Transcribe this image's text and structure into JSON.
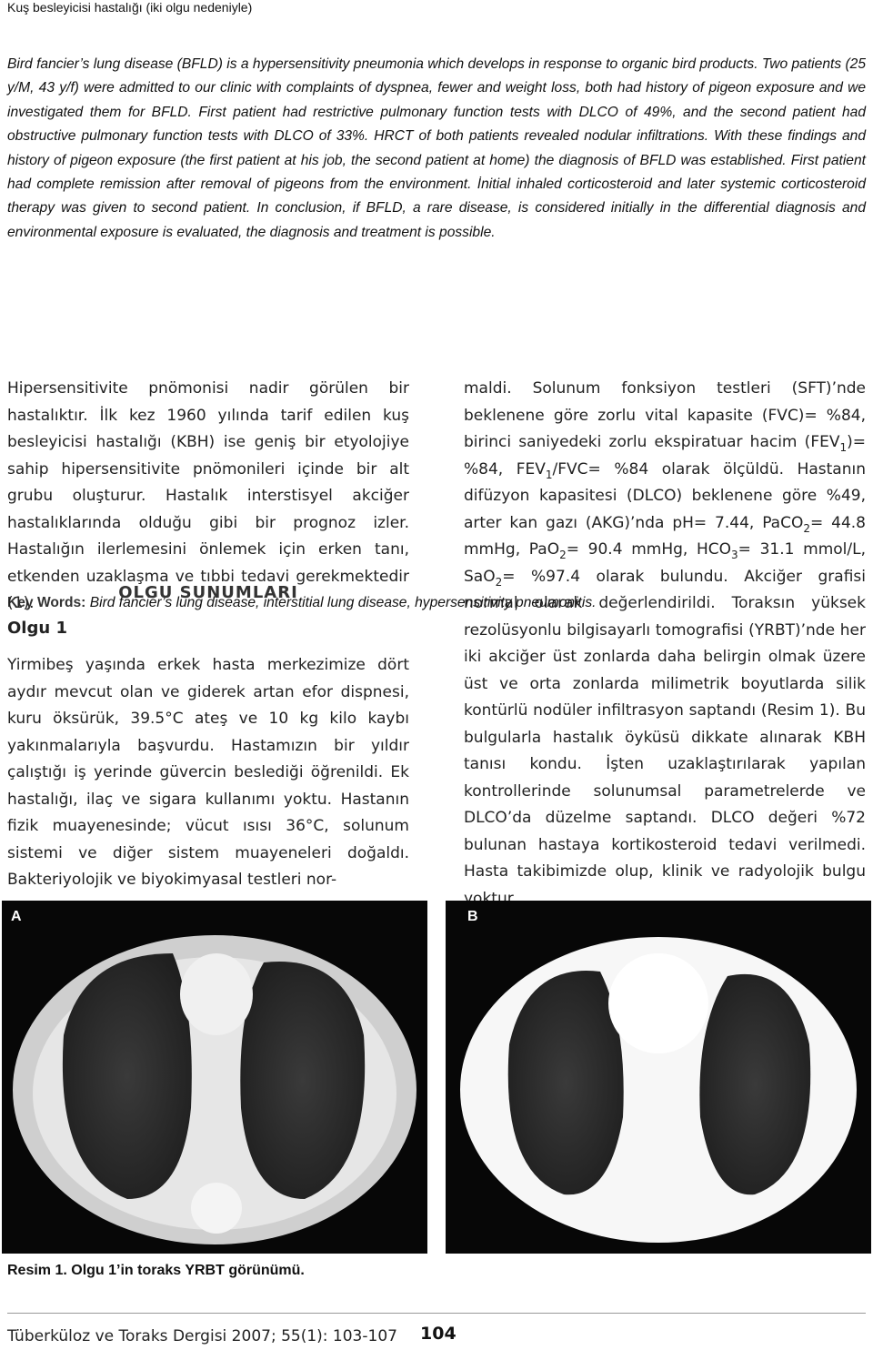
{
  "header": {
    "running_title": "Kuş besleyicisi hastalığı (iki olgu nedeniyle)"
  },
  "abstract": {
    "text": "Bird fancier’s lung disease (BFLD) is a hypersensitivity pneumonia which develops in response to organic bird products. Two patients (25 y/M, 43 y/f) were admitted to our clinic with complaints of dyspnea, fewer and weight loss, both had history of pigeon exposure and we investigated them for BFLD. First patient had restrictive pulmonary function tests with DLCO of 49%, and the second patient had obstructive pulmonary function tests with DLCO of 33%. HRCT of both patients revealed nodular infiltrations. With these findings and history of pigeon exposure (the first patient at his job, the second patient at home) the diagnosis of BFLD was established. First patient had complete remission after removal of pigeons from the environment. İnitial inhaled corticosteroid and later systemic corticosteroid therapy was given to second patient. In conclusion, if BFLD, a rare disease, is considered initially in the differential diagnosis and environmental exposure is evaluated, the diagnosis and treatment is possible.",
    "keywords_label": "Key Words:",
    "keywords": "Bird fancier’s lung disease, interstitial lung disease, hypersensitivity pneumonitis."
  },
  "left_column": {
    "intro": "Hipersensitivite pnömonisi nadir görülen bir hastalıktır. İlk kez 1960 yılında tarif edilen kuş besleyicisi hastalığı (KBH) ise geniş bir etyolojiye sahip hipersensitivite pnömonileri içinde bir alt grubu oluşturur. Hastalık interstisyel akciğer hastalıklarında olduğu gibi bir prognoz izler. Hastalığın ilerlemesini önlemek için erken tanı, etkenden uzaklaşma ve tıbbi tedavi gerekmektedir (1).",
    "section_heading": "OLGU SUNUMLARI",
    "subheading": "Olgu 1",
    "case_text": "Yirmibeş yaşında erkek hasta merkezimize dört aydır mevcut olan ve giderek artan efor dispnesi, kuru öksürük, 39.5°C ateş ve 10 kg kilo kaybı yakınmalarıyla başvurdu. Hastamızın bir yıldır çalıştığı iş yerinde güvercin beslediği öğrenildi. Ek hastalığı, ilaç ve sigara kullanımı yoktu. Hastanın fizik muayenesinde; vücut ısısı 36°C, solunum sistemi ve diğer sistem muayeneleri doğaldı. Bakteriyolojik ve biyokimyasal testleri nor-"
  },
  "right_column": {
    "runs": [
      {
        "text": "maldi. Solunum fonksiyon testleri (SFT)’nde beklenene göre zorlu vital kapasite (FVC)= %84, birinci saniyedeki zorlu ekspiratuar hacim (FEV"
      },
      {
        "sub": "1"
      },
      {
        "text": ")= %84, FEV"
      },
      {
        "sub": "1"
      },
      {
        "text": "/FVC= %84 olarak ölçüldü. Hastanın difüzyon kapasitesi (DLCO) beklenene göre %49, arter kan gazı (AKG)’nda pH= 7.44, PaCO"
      },
      {
        "sub": "2"
      },
      {
        "text": "= 44.8 mmHg, PaO"
      },
      {
        "sub": "2"
      },
      {
        "text": "= 90.4 mmHg, HCO"
      },
      {
        "sub": "3"
      },
      {
        "text": "= 31.1 mmol/L, SaO"
      },
      {
        "sub": "2"
      },
      {
        "text": "= %97.4 olarak bulundu. Akciğer grafisi normal olarak değerlendirildi. Toraksın yüksek rezolüsyonlu bilgisayarlı tomografisi (YRBT)’nde her iki akciğer üst zonlarda daha belirgin olmak üzere üst ve orta zonlarda milimetrik boyutlarda silik kontürlü nodüler infiltrasyon saptandı (Resim 1). Bu bulgularla hastalık öyküsü dikkate alınarak KBH tanısı kondu. İşten uzaklaştırılarak yapılan kontrollerinde solunumsal parametrelerde ve DLCO’da düzelme saptandı. DLCO değeri %72 bulunan hastaya kortikosteroid tedavi verilmedi. Hasta takibimizde olup, klinik ve radyolojik bulgu yoktur."
      }
    ]
  },
  "figure": {
    "panel_labels": [
      "A",
      "B"
    ],
    "caption": "Resim 1. Olgu 1’in toraks YRBT görünümü."
  },
  "footer": {
    "journal": "Tüberküloz ve Toraks Dergisi 2007; 55(1): 103-107",
    "page_number": "104"
  }
}
